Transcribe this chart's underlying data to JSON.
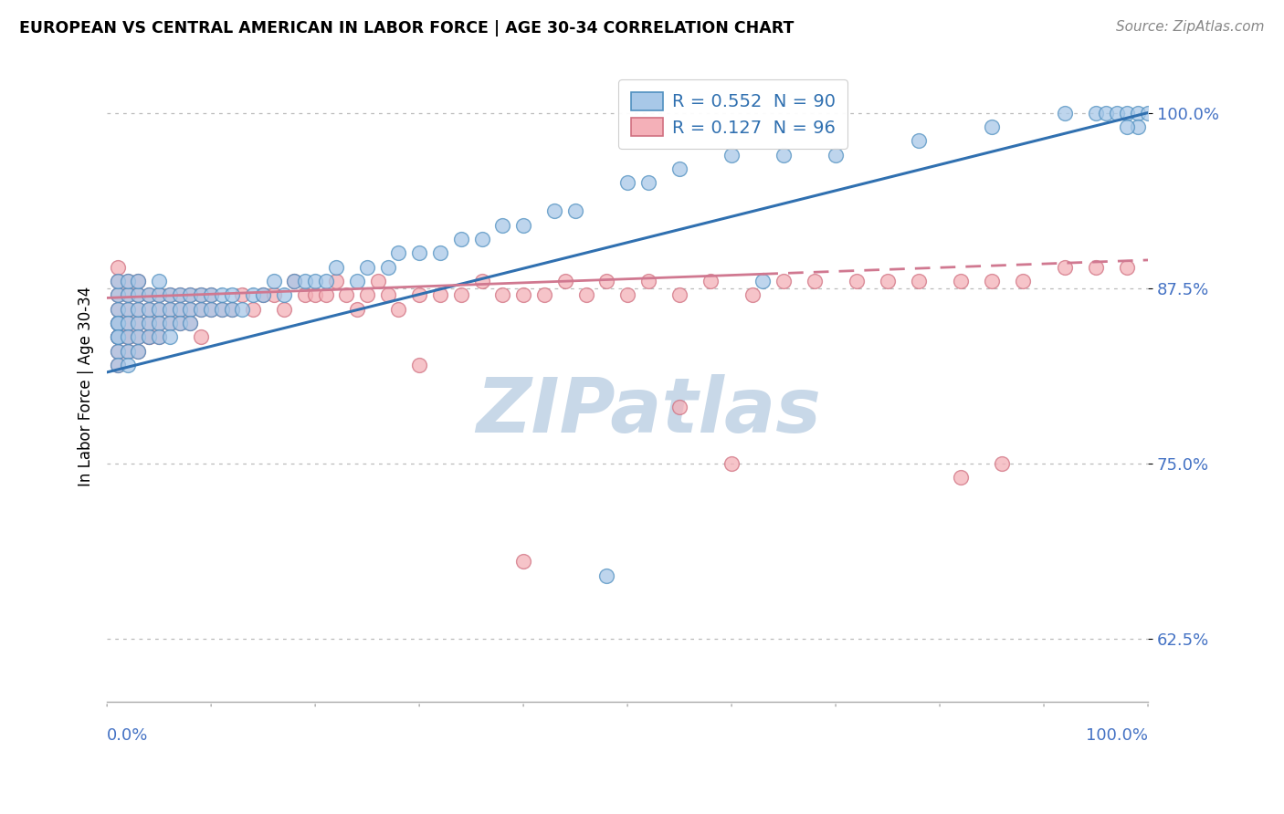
{
  "title": "EUROPEAN VS CENTRAL AMERICAN IN LABOR FORCE | AGE 30-34 CORRELATION CHART",
  "source": "Source: ZipAtlas.com",
  "ylabel": "In Labor Force | Age 30-34",
  "R_european": 0.552,
  "N_european": 90,
  "R_central": 0.127,
  "N_central": 96,
  "ytick_labels": [
    "62.5%",
    "75.0%",
    "87.5%",
    "100.0%"
  ],
  "ytick_values": [
    0.625,
    0.75,
    0.875,
    1.0
  ],
  "color_european_fill": "#a8c8e8",
  "color_european_edge": "#5090c0",
  "color_european_line": "#3070b0",
  "color_central_fill": "#f4b0b8",
  "color_central_edge": "#d07080",
  "color_central_line": "#d07890",
  "eu_line_start_x": 0.0,
  "eu_line_start_y": 0.815,
  "eu_line_end_x": 1.0,
  "eu_line_end_y": 1.0,
  "ca_line_start_x": 0.0,
  "ca_line_start_y": 0.868,
  "ca_line_end_x": 1.0,
  "ca_line_end_y": 0.895,
  "xlim": [
    0.0,
    1.0
  ],
  "ylim": [
    0.58,
    1.03
  ],
  "watermark_text": "ZIPatlas",
  "watermark_color": "#c8d8e8",
  "legend_eu_label": "R = 0.552  N = 90",
  "legend_ca_label": "R = 0.127  N = 96",
  "legend_text_color": "#3070b0",
  "eu_x": [
    0.01,
    0.01,
    0.01,
    0.01,
    0.01,
    0.01,
    0.01,
    0.01,
    0.01,
    0.02,
    0.02,
    0.02,
    0.02,
    0.02,
    0.02,
    0.02,
    0.03,
    0.03,
    0.03,
    0.03,
    0.03,
    0.03,
    0.04,
    0.04,
    0.04,
    0.04,
    0.05,
    0.05,
    0.05,
    0.05,
    0.05,
    0.06,
    0.06,
    0.06,
    0.06,
    0.07,
    0.07,
    0.07,
    0.08,
    0.08,
    0.08,
    0.09,
    0.09,
    0.1,
    0.1,
    0.11,
    0.11,
    0.12,
    0.12,
    0.13,
    0.14,
    0.15,
    0.16,
    0.17,
    0.18,
    0.19,
    0.2,
    0.21,
    0.22,
    0.24,
    0.25,
    0.27,
    0.28,
    0.3,
    0.32,
    0.34,
    0.36,
    0.38,
    0.4,
    0.43,
    0.45,
    0.5,
    0.52,
    0.55,
    0.6,
    0.65,
    0.7,
    0.78,
    0.85,
    0.92,
    0.95,
    0.96,
    0.97,
    0.98,
    0.99,
    1.0,
    0.99,
    0.98,
    0.63,
    0.48
  ],
  "eu_y": [
    0.84,
    0.85,
    0.86,
    0.87,
    0.88,
    0.83,
    0.82,
    0.85,
    0.84,
    0.86,
    0.85,
    0.87,
    0.84,
    0.83,
    0.88,
    0.82,
    0.85,
    0.86,
    0.84,
    0.87,
    0.83,
    0.88,
    0.85,
    0.86,
    0.84,
    0.87,
    0.86,
    0.87,
    0.85,
    0.84,
    0.88,
    0.86,
    0.87,
    0.85,
    0.84,
    0.86,
    0.85,
    0.87,
    0.86,
    0.87,
    0.85,
    0.86,
    0.87,
    0.86,
    0.87,
    0.86,
    0.87,
    0.86,
    0.87,
    0.86,
    0.87,
    0.87,
    0.88,
    0.87,
    0.88,
    0.88,
    0.88,
    0.88,
    0.89,
    0.88,
    0.89,
    0.89,
    0.9,
    0.9,
    0.9,
    0.91,
    0.91,
    0.92,
    0.92,
    0.93,
    0.93,
    0.95,
    0.95,
    0.96,
    0.97,
    0.97,
    0.97,
    0.98,
    0.99,
    1.0,
    1.0,
    1.0,
    1.0,
    1.0,
    1.0,
    1.0,
    0.99,
    0.99,
    0.88,
    0.67
  ],
  "ca_x": [
    0.01,
    0.01,
    0.01,
    0.01,
    0.01,
    0.01,
    0.01,
    0.01,
    0.01,
    0.01,
    0.02,
    0.02,
    0.02,
    0.02,
    0.02,
    0.02,
    0.02,
    0.03,
    0.03,
    0.03,
    0.03,
    0.03,
    0.03,
    0.04,
    0.04,
    0.04,
    0.04,
    0.04,
    0.05,
    0.05,
    0.05,
    0.05,
    0.06,
    0.06,
    0.06,
    0.07,
    0.07,
    0.07,
    0.08,
    0.08,
    0.08,
    0.09,
    0.09,
    0.09,
    0.1,
    0.1,
    0.11,
    0.12,
    0.13,
    0.14,
    0.15,
    0.16,
    0.17,
    0.18,
    0.19,
    0.2,
    0.21,
    0.22,
    0.23,
    0.24,
    0.25,
    0.26,
    0.27,
    0.28,
    0.3,
    0.32,
    0.34,
    0.36,
    0.38,
    0.4,
    0.42,
    0.44,
    0.46,
    0.48,
    0.5,
    0.52,
    0.55,
    0.58,
    0.62,
    0.65,
    0.68,
    0.72,
    0.75,
    0.78,
    0.82,
    0.85,
    0.88,
    0.92,
    0.95,
    0.98,
    0.55,
    0.6,
    0.82,
    0.86,
    0.3,
    0.4
  ],
  "ca_y": [
    0.84,
    0.85,
    0.86,
    0.87,
    0.88,
    0.83,
    0.82,
    0.85,
    0.84,
    0.89,
    0.86,
    0.87,
    0.84,
    0.83,
    0.88,
    0.85,
    0.84,
    0.85,
    0.86,
    0.84,
    0.87,
    0.83,
    0.88,
    0.85,
    0.86,
    0.84,
    0.87,
    0.84,
    0.86,
    0.87,
    0.85,
    0.84,
    0.86,
    0.87,
    0.85,
    0.86,
    0.85,
    0.87,
    0.86,
    0.87,
    0.85,
    0.86,
    0.87,
    0.84,
    0.86,
    0.87,
    0.86,
    0.86,
    0.87,
    0.86,
    0.87,
    0.87,
    0.86,
    0.88,
    0.87,
    0.87,
    0.87,
    0.88,
    0.87,
    0.86,
    0.87,
    0.88,
    0.87,
    0.86,
    0.87,
    0.87,
    0.87,
    0.88,
    0.87,
    0.87,
    0.87,
    0.88,
    0.87,
    0.88,
    0.87,
    0.88,
    0.87,
    0.88,
    0.87,
    0.88,
    0.88,
    0.88,
    0.88,
    0.88,
    0.88,
    0.88,
    0.88,
    0.89,
    0.89,
    0.89,
    0.79,
    0.75,
    0.74,
    0.75,
    0.82,
    0.68
  ]
}
